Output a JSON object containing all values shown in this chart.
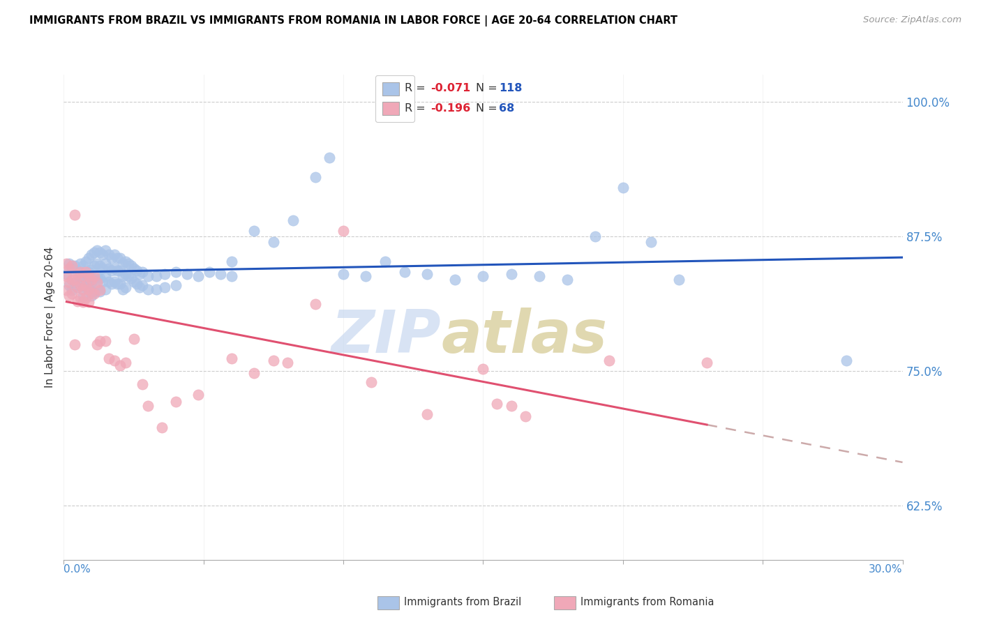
{
  "title": "IMMIGRANTS FROM BRAZIL VS IMMIGRANTS FROM ROMANIA IN LABOR FORCE | AGE 20-64 CORRELATION CHART",
  "source": "Source: ZipAtlas.com",
  "ylabel": "In Labor Force | Age 20-64",
  "xlim": [
    0.0,
    0.3
  ],
  "ylim": [
    0.575,
    1.025
  ],
  "yticks": [
    0.625,
    0.75,
    0.875,
    1.0
  ],
  "ytick_labels": [
    "62.5%",
    "75.0%",
    "87.5%",
    "100.0%"
  ],
  "xticks": [
    0.0,
    0.05,
    0.1,
    0.15,
    0.2,
    0.25,
    0.3
  ],
  "brazil_color": "#aac4e8",
  "romania_color": "#f0a8b8",
  "brazil_line_color": "#2255bb",
  "romania_line_color": "#e05070",
  "dashed_line_color": "#ccaaaa",
  "legend_R_color": "#dd2233",
  "legend_N_color": "#2255bb",
  "watermark_zip_color": "#c8d8f0",
  "watermark_atlas_color": "#c8b870",
  "brazil_dots": [
    [
      0.001,
      0.84
    ],
    [
      0.002,
      0.85
    ],
    [
      0.002,
      0.83
    ],
    [
      0.003,
      0.845
    ],
    [
      0.003,
      0.825
    ],
    [
      0.004,
      0.848
    ],
    [
      0.004,
      0.832
    ],
    [
      0.005,
      0.843
    ],
    [
      0.005,
      0.828
    ],
    [
      0.006,
      0.85
    ],
    [
      0.006,
      0.835
    ],
    [
      0.007,
      0.848
    ],
    [
      0.007,
      0.835
    ],
    [
      0.007,
      0.82
    ],
    [
      0.008,
      0.852
    ],
    [
      0.008,
      0.84
    ],
    [
      0.008,
      0.828
    ],
    [
      0.009,
      0.855
    ],
    [
      0.009,
      0.842
    ],
    [
      0.009,
      0.83
    ],
    [
      0.01,
      0.858
    ],
    [
      0.01,
      0.844
    ],
    [
      0.01,
      0.832
    ],
    [
      0.01,
      0.82
    ],
    [
      0.011,
      0.86
    ],
    [
      0.011,
      0.848
    ],
    [
      0.011,
      0.835
    ],
    [
      0.011,
      0.823
    ],
    [
      0.012,
      0.862
    ],
    [
      0.012,
      0.85
    ],
    [
      0.012,
      0.838
    ],
    [
      0.012,
      0.826
    ],
    [
      0.013,
      0.86
    ],
    [
      0.013,
      0.848
    ],
    [
      0.013,
      0.836
    ],
    [
      0.013,
      0.824
    ],
    [
      0.014,
      0.858
    ],
    [
      0.014,
      0.845
    ],
    [
      0.014,
      0.833
    ],
    [
      0.015,
      0.862
    ],
    [
      0.015,
      0.85
    ],
    [
      0.015,
      0.838
    ],
    [
      0.015,
      0.826
    ],
    [
      0.016,
      0.858
    ],
    [
      0.016,
      0.845
    ],
    [
      0.016,
      0.833
    ],
    [
      0.017,
      0.855
    ],
    [
      0.017,
      0.843
    ],
    [
      0.017,
      0.831
    ],
    [
      0.018,
      0.858
    ],
    [
      0.018,
      0.845
    ],
    [
      0.018,
      0.833
    ],
    [
      0.019,
      0.855
    ],
    [
      0.019,
      0.843
    ],
    [
      0.019,
      0.831
    ],
    [
      0.02,
      0.855
    ],
    [
      0.02,
      0.843
    ],
    [
      0.02,
      0.831
    ],
    [
      0.021,
      0.85
    ],
    [
      0.021,
      0.838
    ],
    [
      0.021,
      0.826
    ],
    [
      0.022,
      0.852
    ],
    [
      0.022,
      0.84
    ],
    [
      0.022,
      0.828
    ],
    [
      0.023,
      0.85
    ],
    [
      0.023,
      0.838
    ],
    [
      0.024,
      0.848
    ],
    [
      0.024,
      0.836
    ],
    [
      0.025,
      0.845
    ],
    [
      0.025,
      0.833
    ],
    [
      0.026,
      0.843
    ],
    [
      0.026,
      0.831
    ],
    [
      0.027,
      0.84
    ],
    [
      0.027,
      0.828
    ],
    [
      0.028,
      0.842
    ],
    [
      0.028,
      0.83
    ],
    [
      0.03,
      0.838
    ],
    [
      0.03,
      0.826
    ],
    [
      0.033,
      0.838
    ],
    [
      0.033,
      0.826
    ],
    [
      0.036,
      0.84
    ],
    [
      0.036,
      0.828
    ],
    [
      0.04,
      0.842
    ],
    [
      0.04,
      0.83
    ],
    [
      0.044,
      0.84
    ],
    [
      0.048,
      0.838
    ],
    [
      0.052,
      0.842
    ],
    [
      0.056,
      0.84
    ],
    [
      0.06,
      0.838
    ],
    [
      0.06,
      0.852
    ],
    [
      0.068,
      0.88
    ],
    [
      0.075,
      0.87
    ],
    [
      0.082,
      0.89
    ],
    [
      0.09,
      0.93
    ],
    [
      0.095,
      0.948
    ],
    [
      0.1,
      0.84
    ],
    [
      0.108,
      0.838
    ],
    [
      0.115,
      0.852
    ],
    [
      0.122,
      0.842
    ],
    [
      0.13,
      0.84
    ],
    [
      0.14,
      0.835
    ],
    [
      0.15,
      0.838
    ],
    [
      0.16,
      0.84
    ],
    [
      0.17,
      0.838
    ],
    [
      0.18,
      0.835
    ],
    [
      0.19,
      0.875
    ],
    [
      0.2,
      0.92
    ],
    [
      0.21,
      0.87
    ],
    [
      0.22,
      0.835
    ],
    [
      0.28,
      0.76
    ]
  ],
  "romania_dots": [
    [
      0.001,
      0.85
    ],
    [
      0.001,
      0.838
    ],
    [
      0.001,
      0.825
    ],
    [
      0.002,
      0.845
    ],
    [
      0.002,
      0.832
    ],
    [
      0.002,
      0.82
    ],
    [
      0.003,
      0.848
    ],
    [
      0.003,
      0.835
    ],
    [
      0.003,
      0.822
    ],
    [
      0.004,
      0.895
    ],
    [
      0.004,
      0.835
    ],
    [
      0.004,
      0.775
    ],
    [
      0.005,
      0.84
    ],
    [
      0.005,
      0.828
    ],
    [
      0.005,
      0.815
    ],
    [
      0.006,
      0.842
    ],
    [
      0.006,
      0.83
    ],
    [
      0.006,
      0.818
    ],
    [
      0.007,
      0.838
    ],
    [
      0.007,
      0.826
    ],
    [
      0.007,
      0.814
    ],
    [
      0.008,
      0.842
    ],
    [
      0.008,
      0.83
    ],
    [
      0.008,
      0.818
    ],
    [
      0.009,
      0.838
    ],
    [
      0.009,
      0.826
    ],
    [
      0.009,
      0.814
    ],
    [
      0.01,
      0.835
    ],
    [
      0.01,
      0.823
    ],
    [
      0.011,
      0.838
    ],
    [
      0.011,
      0.822
    ],
    [
      0.012,
      0.832
    ],
    [
      0.012,
      0.775
    ],
    [
      0.013,
      0.825
    ],
    [
      0.013,
      0.778
    ],
    [
      0.015,
      0.778
    ],
    [
      0.016,
      0.762
    ],
    [
      0.018,
      0.76
    ],
    [
      0.02,
      0.755
    ],
    [
      0.022,
      0.758
    ],
    [
      0.025,
      0.78
    ],
    [
      0.028,
      0.738
    ],
    [
      0.03,
      0.718
    ],
    [
      0.035,
      0.698
    ],
    [
      0.04,
      0.722
    ],
    [
      0.048,
      0.728
    ],
    [
      0.06,
      0.762
    ],
    [
      0.068,
      0.748
    ],
    [
      0.075,
      0.76
    ],
    [
      0.08,
      0.758
    ],
    [
      0.09,
      0.812
    ],
    [
      0.1,
      0.88
    ],
    [
      0.11,
      0.74
    ],
    [
      0.13,
      0.71
    ],
    [
      0.15,
      0.752
    ],
    [
      0.155,
      0.72
    ],
    [
      0.16,
      0.718
    ],
    [
      0.165,
      0.708
    ],
    [
      0.195,
      0.76
    ],
    [
      0.23,
      0.758
    ]
  ]
}
